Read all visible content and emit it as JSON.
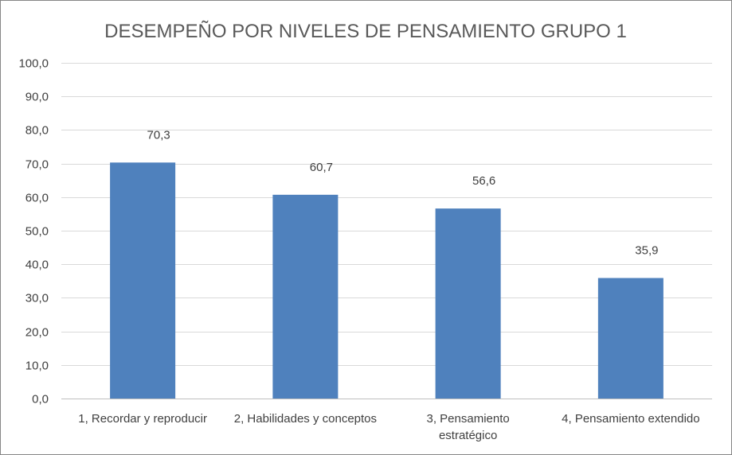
{
  "chart_data": {
    "type": "bar",
    "title": "DESEMPEÑO POR NIVELES DE PENSAMIENTO GRUPO 1",
    "xlabel": "",
    "ylabel": "",
    "categories": [
      [
        "1, Recordar y reproducir"
      ],
      [
        "2, Habilidades y conceptos"
      ],
      [
        "3, Pensamiento",
        "estratégico"
      ],
      [
        "4, Pensamiento extendido"
      ]
    ],
    "values": [
      70.3,
      60.7,
      56.6,
      35.9
    ],
    "value_labels": [
      "70,3",
      "60,7",
      "56,6",
      "35,9"
    ],
    "ylim": [
      0,
      100
    ],
    "yticks": [
      0,
      10,
      20,
      30,
      40,
      50,
      60,
      70,
      80,
      90,
      100
    ],
    "ytick_labels": [
      "0,0",
      "10,0",
      "20,0",
      "30,0",
      "40,0",
      "50,0",
      "60,0",
      "70,0",
      "80,0",
      "90,0",
      "100,0"
    ],
    "grid": true,
    "legend": "none",
    "bar_color": "#4F81BD",
    "grid_color": "#D9D9D9"
  }
}
